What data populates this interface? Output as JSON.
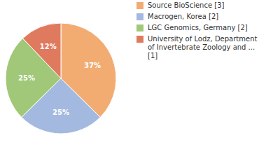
{
  "chart_data": {
    "type": "pie",
    "categories": [
      "Source BioScience [3]",
      "Macrogen, Korea [2]",
      "LGC Genomics, Germany [2]",
      "University of Lodz, Department of Invertebrate Zoology and ... [1]"
    ],
    "values": [
      37,
      25,
      25,
      12
    ],
    "value_labels": [
      "37%",
      "25%",
      "25%",
      "12%"
    ],
    "colors": [
      "#f2ac72",
      "#a4b9e0",
      "#a0c878",
      "#e07a5f"
    ],
    "data_labels": true,
    "legend": "right"
  }
}
